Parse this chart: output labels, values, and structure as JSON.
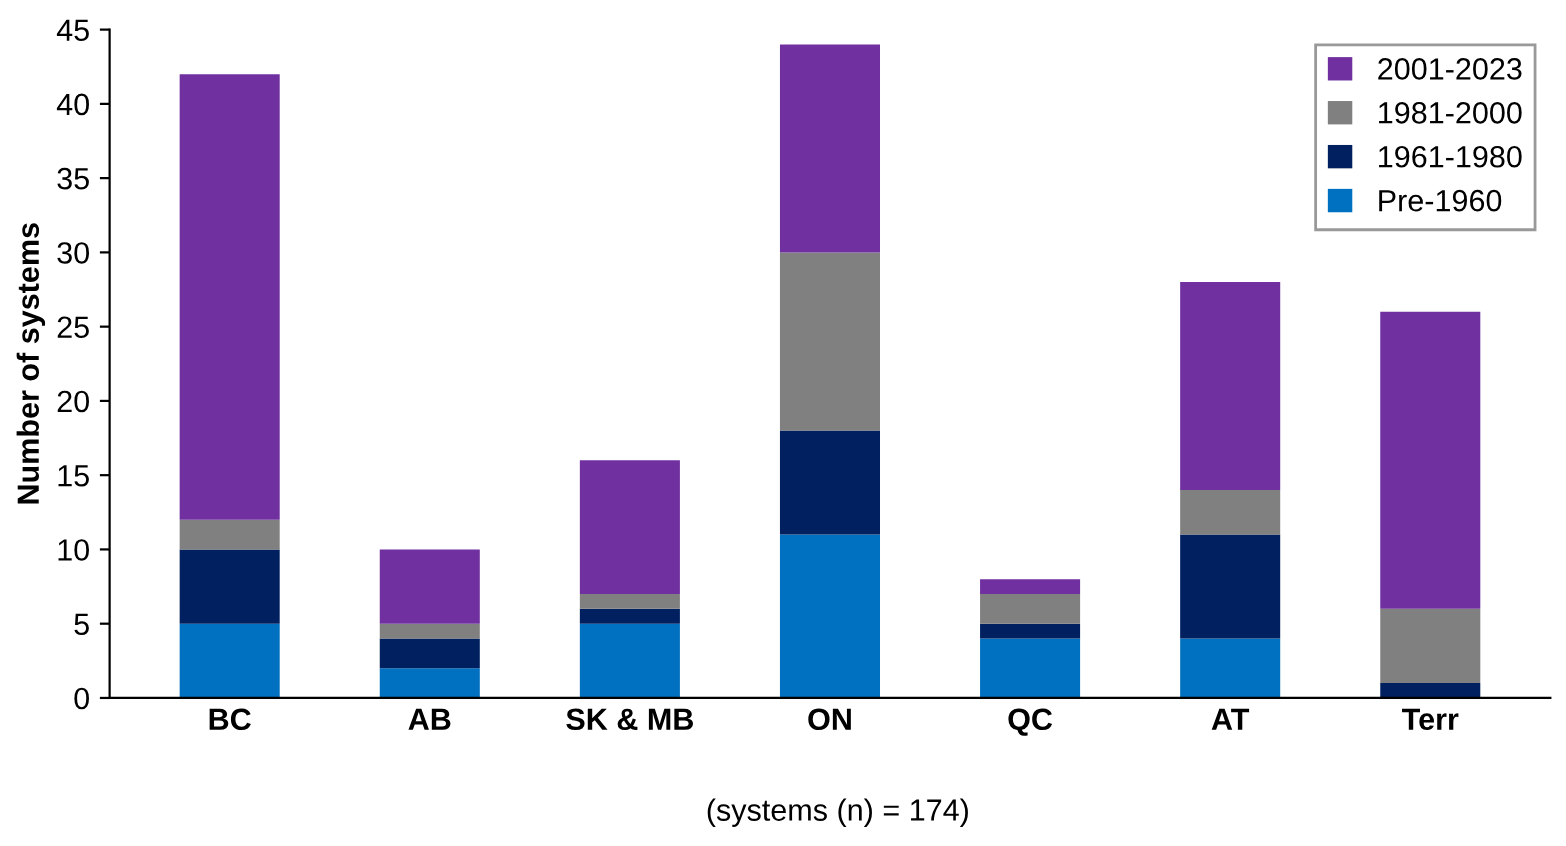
{
  "chart_data": {
    "type": "bar",
    "stacked": true,
    "ylabel": "Number of systems",
    "categories": [
      "BC",
      "AB",
      "SK & MB",
      "ON",
      "QC",
      "AT",
      "Terr"
    ],
    "series": [
      {
        "name": "Pre-1960",
        "color": "#0070c0",
        "values": [
          5,
          2,
          5,
          11,
          4,
          4,
          0
        ]
      },
      {
        "name": "1961-1980",
        "color": "#002060",
        "values": [
          5,
          2,
          1,
          7,
          1,
          7,
          1
        ]
      },
      {
        "name": "1981-2000",
        "color": "#808080",
        "values": [
          2,
          1,
          1,
          12,
          2,
          3,
          5
        ]
      },
      {
        "name": "2001-2023",
        "color": "#7030a0",
        "values": [
          30,
          5,
          9,
          14,
          1,
          14,
          20
        ]
      }
    ],
    "ylim": [
      0,
      45
    ],
    "yticks": [
      0,
      5,
      10,
      15,
      20,
      25,
      30,
      35,
      40,
      45
    ],
    "grid": false,
    "legend": "top right",
    "annotations": [
      "(systems (n) = 174)"
    ]
  }
}
